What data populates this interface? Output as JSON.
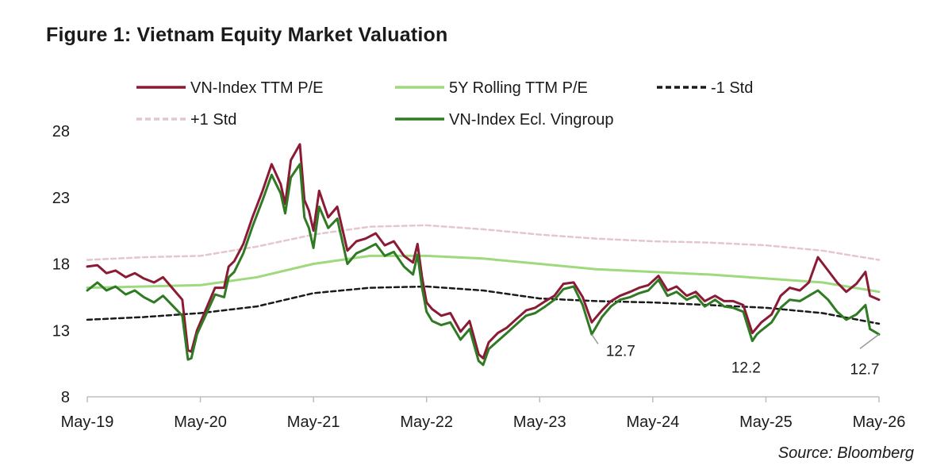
{
  "figure": {
    "title": "Figure 1: Vietnam Equity Market Valuation",
    "source": "Source: Bloomberg"
  },
  "colors": {
    "pe": "#8b1a35",
    "rolling": "#9fd97d",
    "minus_std": "#1a1a1a",
    "plus_std": "#e3c7cc",
    "exvin": "#2f7a23",
    "annotation_line": "#9a9a9a"
  },
  "chart_data": {
    "type": "line",
    "title": "",
    "xlabel": "",
    "ylabel": "",
    "x_range": [
      2019.33,
      2026.33
    ],
    "ylim": [
      8,
      28
    ],
    "y_ticks": [
      8,
      13,
      18,
      23,
      28
    ],
    "x_ticks": [
      {
        "x": 2019.33,
        "label": "May-19"
      },
      {
        "x": 2020.33,
        "label": "May-20"
      },
      {
        "x": 2021.33,
        "label": "May-21"
      },
      {
        "x": 2022.33,
        "label": "May-22"
      },
      {
        "x": 2023.33,
        "label": "May-23"
      },
      {
        "x": 2024.33,
        "label": "May-24"
      },
      {
        "x": 2025.33,
        "label": "May-25"
      },
      {
        "x": 2026.33,
        "label": "May-26"
      }
    ],
    "grid": false,
    "legend_position": "top",
    "series": [
      {
        "name": "VN-Index TTM P/E",
        "key": "pe",
        "style": "solid",
        "x": [
          2019.33,
          2019.42,
          2019.5,
          2019.58,
          2019.67,
          2019.75,
          2019.83,
          2019.92,
          2020.0,
          2020.08,
          2020.17,
          2020.22,
          2020.25,
          2020.3,
          2020.38,
          2020.46,
          2020.54,
          2020.58,
          2020.63,
          2020.71,
          2020.79,
          2020.88,
          2020.96,
          2021.04,
          2021.08,
          2021.13,
          2021.21,
          2021.25,
          2021.29,
          2021.33,
          2021.38,
          2021.46,
          2021.54,
          2021.63,
          2021.71,
          2021.79,
          2021.88,
          2021.96,
          2022.04,
          2022.13,
          2022.21,
          2022.25,
          2022.29,
          2022.33,
          2022.38,
          2022.46,
          2022.54,
          2022.63,
          2022.71,
          2022.79,
          2022.83,
          2022.88,
          2022.96,
          2023.04,
          2023.13,
          2023.21,
          2023.29,
          2023.38,
          2023.46,
          2023.54,
          2023.63,
          2023.71,
          2023.79,
          2023.88,
          2023.96,
          2024.04,
          2024.13,
          2024.21,
          2024.29,
          2024.38,
          2024.46,
          2024.54,
          2024.63,
          2024.71,
          2024.79,
          2024.88,
          2024.96,
          2025.04,
          2025.13,
          2025.21,
          2025.25,
          2025.29,
          2025.38,
          2025.46,
          2025.54,
          2025.63,
          2025.71,
          2025.79,
          2025.88,
          2025.96,
          2026.04,
          2026.13,
          2026.21,
          2026.25,
          2026.33
        ],
        "values": [
          17.8,
          17.9,
          17.3,
          17.5,
          17.0,
          17.3,
          16.9,
          16.6,
          17.0,
          16.2,
          15.3,
          11.5,
          11.4,
          13.0,
          14.6,
          16.2,
          16.2,
          17.8,
          18.2,
          19.5,
          21.5,
          23.5,
          25.5,
          24.0,
          22.5,
          25.8,
          27.0,
          22.8,
          22.0,
          20.5,
          23.5,
          21.5,
          22.3,
          19.0,
          19.7,
          19.9,
          20.3,
          19.4,
          19.7,
          18.6,
          18.1,
          19.5,
          17.0,
          15.1,
          14.6,
          14.1,
          14.3,
          12.9,
          13.7,
          11.2,
          10.9,
          12.1,
          12.8,
          13.2,
          13.9,
          14.5,
          14.7,
          15.2,
          15.6,
          16.5,
          16.6,
          15.5,
          13.6,
          14.5,
          15.2,
          15.6,
          15.9,
          16.2,
          16.4,
          17.1,
          16.0,
          16.3,
          15.6,
          15.9,
          15.2,
          15.6,
          15.2,
          15.2,
          14.9,
          12.8,
          13.2,
          13.6,
          14.2,
          15.6,
          16.2,
          16.0,
          16.6,
          18.5,
          17.5,
          16.6,
          15.9,
          16.5,
          17.4,
          15.6,
          15.3
        ]
      },
      {
        "name": "5Y  Rolling TTM P/E",
        "key": "rolling",
        "style": "solid",
        "x": [
          2019.33,
          2019.83,
          2020.33,
          2020.83,
          2021.33,
          2021.83,
          2022.33,
          2022.83,
          2023.33,
          2023.83,
          2024.33,
          2024.83,
          2025.33,
          2025.83,
          2026.33
        ],
        "values": [
          16.2,
          16.3,
          16.4,
          17.0,
          18.0,
          18.6,
          18.6,
          18.4,
          18.0,
          17.6,
          17.4,
          17.2,
          16.9,
          16.6,
          15.9
        ]
      },
      {
        "name": "-1 Std",
        "key": "minus_std",
        "style": "dashed",
        "x": [
          2019.33,
          2019.83,
          2020.33,
          2020.83,
          2021.33,
          2021.83,
          2022.33,
          2022.83,
          2023.33,
          2023.83,
          2024.33,
          2024.83,
          2025.33,
          2025.83,
          2026.33
        ],
        "values": [
          13.8,
          14.0,
          14.3,
          14.8,
          15.8,
          16.2,
          16.3,
          16.0,
          15.4,
          15.2,
          15.1,
          14.9,
          14.7,
          14.3,
          13.5
        ]
      },
      {
        "name": "+1 Std",
        "key": "plus_std",
        "style": "dashed",
        "x": [
          2019.33,
          2019.83,
          2020.33,
          2020.83,
          2021.33,
          2021.83,
          2022.33,
          2022.83,
          2023.33,
          2023.83,
          2024.33,
          2024.83,
          2025.33,
          2025.83,
          2026.33
        ],
        "values": [
          18.3,
          18.5,
          18.6,
          19.3,
          20.2,
          20.8,
          20.9,
          20.6,
          20.2,
          19.9,
          19.7,
          19.6,
          19.4,
          19.0,
          18.3
        ]
      },
      {
        "name": "VN-Index Ecl. Vingroup",
        "key": "exvin",
        "style": "solid",
        "x": [
          2019.33,
          2019.42,
          2019.5,
          2019.58,
          2019.67,
          2019.75,
          2019.83,
          2019.92,
          2020.0,
          2020.08,
          2020.17,
          2020.22,
          2020.25,
          2020.3,
          2020.38,
          2020.46,
          2020.54,
          2020.58,
          2020.63,
          2020.71,
          2020.79,
          2020.88,
          2020.96,
          2021.04,
          2021.08,
          2021.13,
          2021.21,
          2021.25,
          2021.29,
          2021.33,
          2021.38,
          2021.46,
          2021.54,
          2021.63,
          2021.71,
          2021.79,
          2021.88,
          2021.96,
          2022.04,
          2022.13,
          2022.21,
          2022.25,
          2022.29,
          2022.33,
          2022.38,
          2022.46,
          2022.54,
          2022.63,
          2022.71,
          2022.79,
          2022.83,
          2022.88,
          2022.96,
          2023.04,
          2023.13,
          2023.21,
          2023.29,
          2023.38,
          2023.46,
          2023.54,
          2023.63,
          2023.71,
          2023.79,
          2023.88,
          2023.96,
          2024.04,
          2024.13,
          2024.21,
          2024.29,
          2024.38,
          2024.46,
          2024.54,
          2024.63,
          2024.71,
          2024.79,
          2024.88,
          2024.96,
          2025.04,
          2025.13,
          2025.21,
          2025.25,
          2025.29,
          2025.38,
          2025.46,
          2025.54,
          2025.63,
          2025.71,
          2025.79,
          2025.88,
          2025.96,
          2026.04,
          2026.13,
          2026.21,
          2026.25,
          2026.33
        ],
        "values": [
          16.0,
          16.6,
          16.0,
          16.3,
          15.7,
          16.0,
          15.5,
          15.1,
          15.6,
          14.9,
          14.1,
          10.8,
          10.9,
          12.7,
          14.2,
          15.7,
          15.5,
          17.0,
          17.4,
          18.8,
          20.8,
          22.8,
          24.7,
          23.3,
          21.8,
          24.5,
          25.5,
          21.5,
          20.7,
          19.2,
          22.3,
          20.7,
          21.4,
          18.0,
          18.8,
          19.1,
          19.5,
          18.6,
          18.9,
          17.8,
          17.2,
          18.7,
          16.2,
          14.4,
          13.7,
          13.4,
          13.6,
          12.3,
          13.1,
          10.7,
          10.4,
          11.6,
          12.2,
          12.8,
          13.5,
          14.1,
          14.3,
          14.8,
          15.3,
          16.1,
          16.3,
          14.9,
          12.7,
          14.0,
          14.8,
          15.3,
          15.5,
          15.8,
          16.0,
          16.8,
          15.6,
          15.9,
          15.3,
          15.6,
          14.8,
          15.3,
          14.8,
          14.7,
          14.4,
          12.2,
          12.7,
          13.0,
          13.6,
          14.7,
          15.3,
          15.2,
          15.6,
          16.0,
          15.3,
          14.4,
          13.8,
          14.2,
          14.9,
          13.1,
          12.7
        ]
      }
    ],
    "annotations": [
      {
        "text": "12.7",
        "x": 2023.79,
        "y": 12.7
      },
      {
        "text": "12.2",
        "x": 2025.21,
        "y": 12.2
      },
      {
        "text": "12.7",
        "x": 2026.33,
        "y": 12.7
      }
    ]
  }
}
